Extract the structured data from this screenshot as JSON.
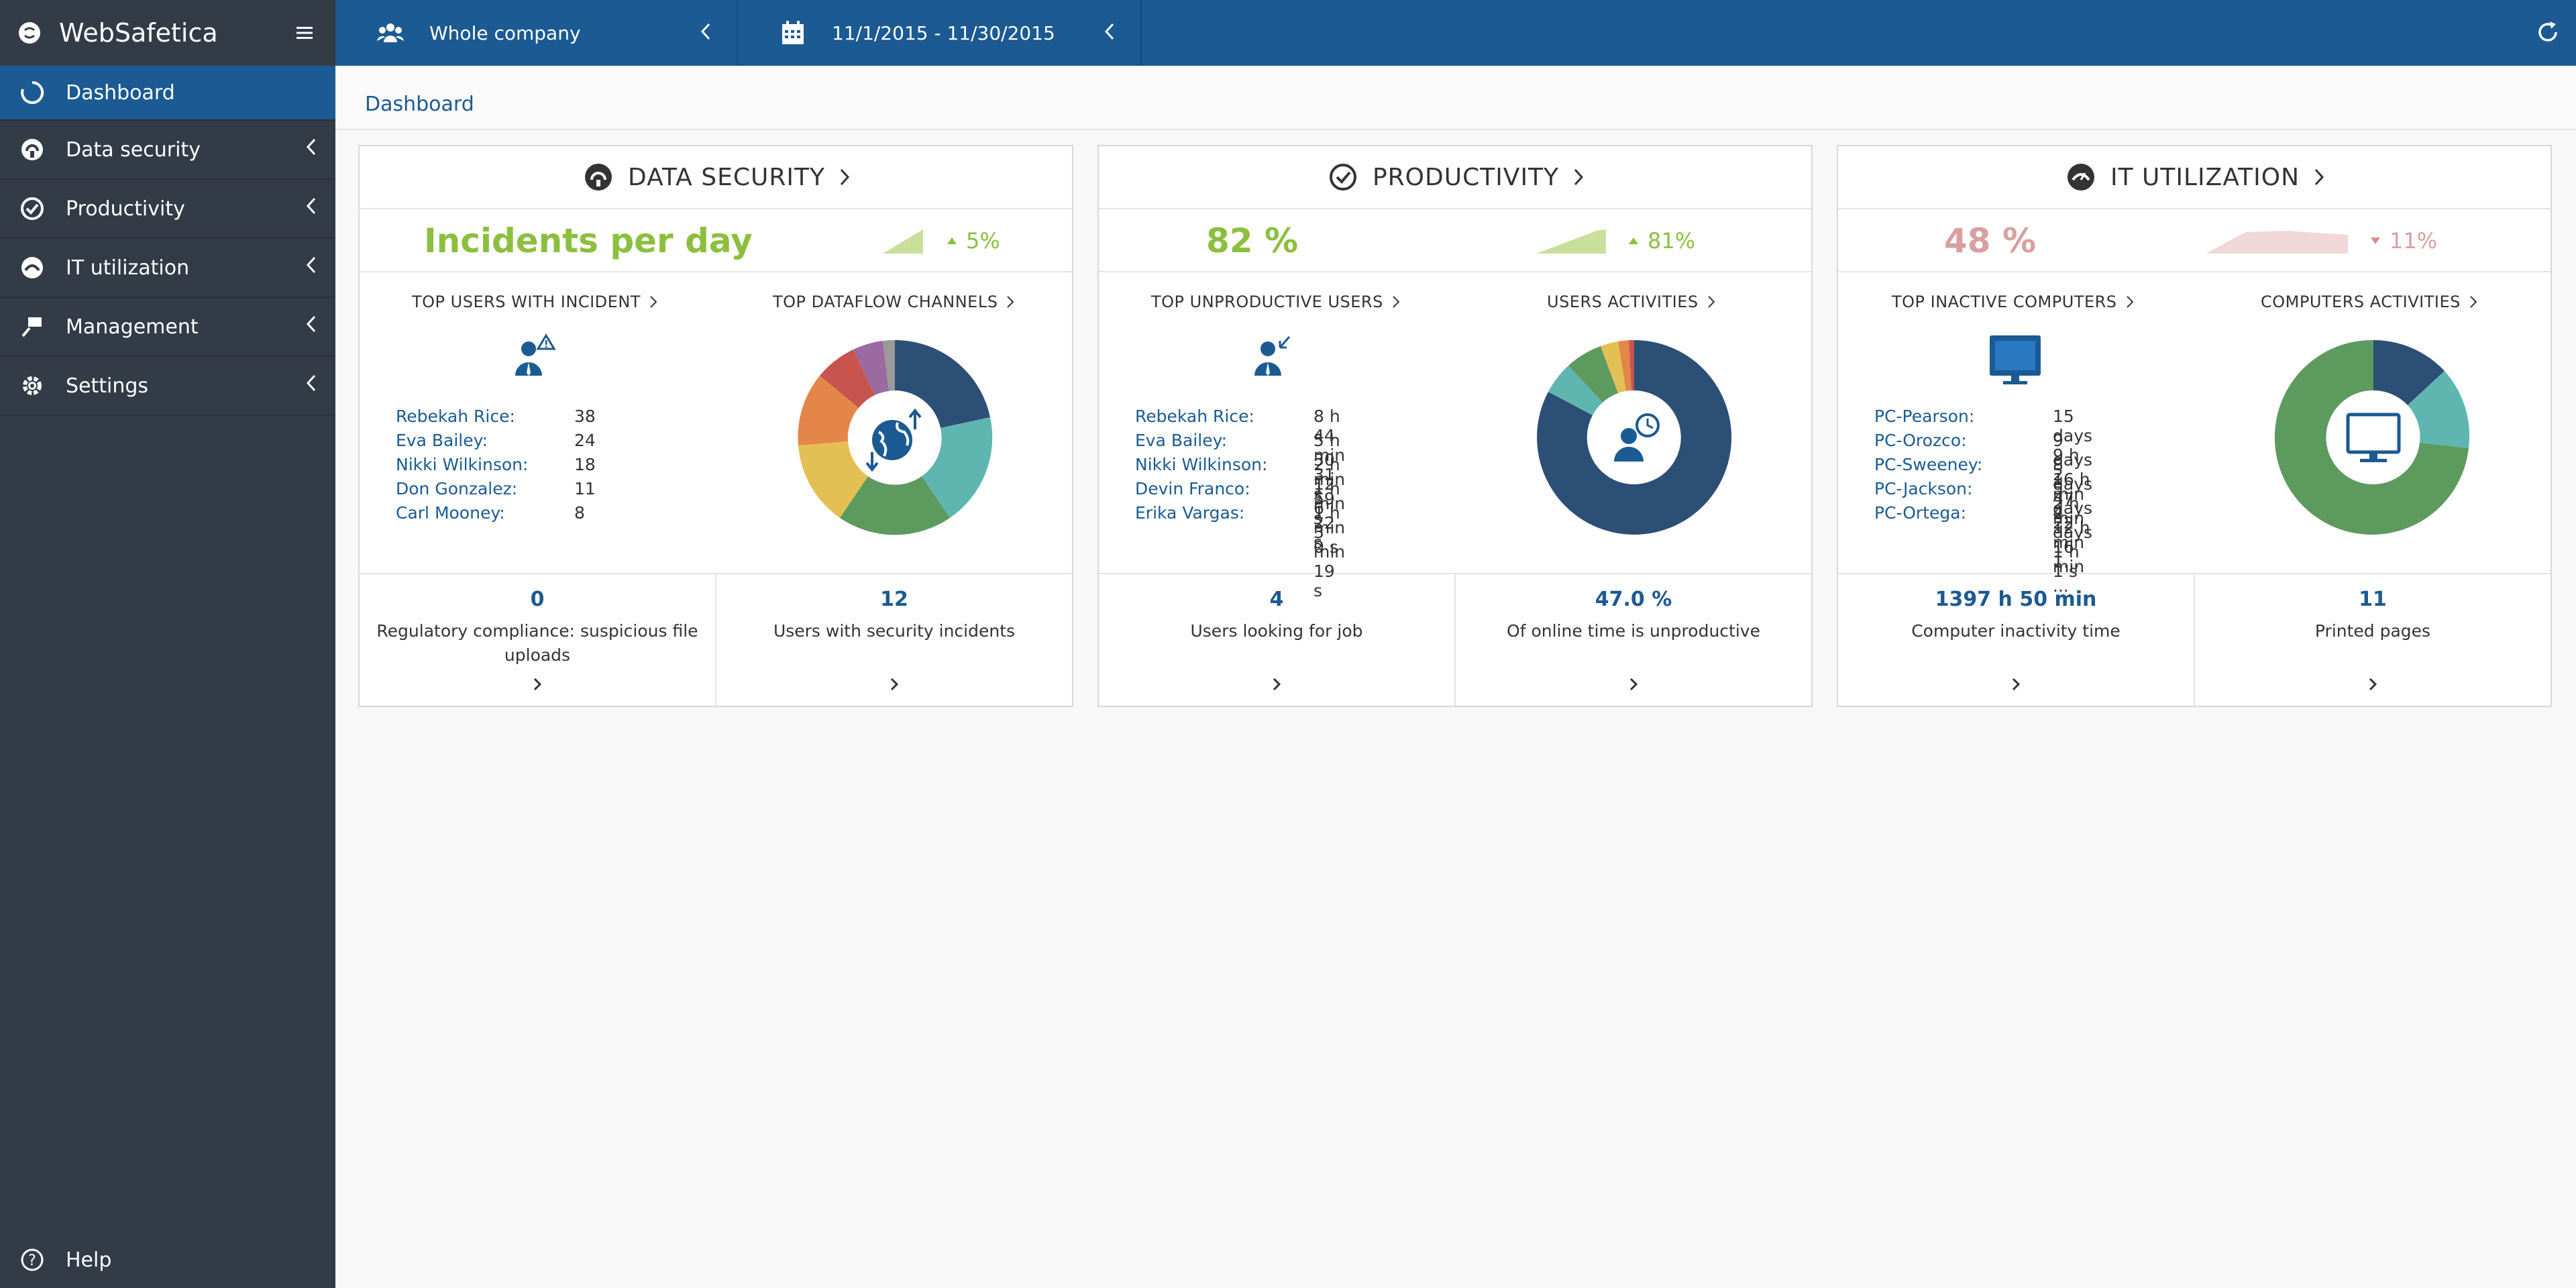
{
  "app": {
    "brand": "WebSafetica"
  },
  "sidebar": {
    "items": [
      {
        "label": "Dashboard",
        "icon": "dashboard-icon"
      },
      {
        "label": "Data security",
        "icon": "shield-icon"
      },
      {
        "label": "Productivity",
        "icon": "check-circle-icon"
      },
      {
        "label": "IT utilization",
        "icon": "gauge-icon"
      },
      {
        "label": "Management",
        "icon": "management-icon"
      },
      {
        "label": "Settings",
        "icon": "gear-icon"
      }
    ],
    "help": "Help"
  },
  "topbar": {
    "company": "Whole company",
    "date_range": "11/1/2015 - 11/30/2015"
  },
  "breadcrumb": "Dashboard",
  "colors": {
    "primary": "#1b5a93",
    "sidebar": "#333b47",
    "green": "#8cbf3f",
    "pink": "#d8a0a0"
  },
  "panels": {
    "security": {
      "title": "DATA SECURITY",
      "kpi": "Incidents per day",
      "delta": "5%",
      "left_title": "TOP USERS WITH INCIDENT",
      "right_title": "TOP DATAFLOW CHANNELS",
      "users": [
        {
          "name": "Rebekah Rice:",
          "value": "38"
        },
        {
          "name": "Eva Bailey:",
          "value": "24"
        },
        {
          "name": "Nikki Wilkinson:",
          "value": "18"
        },
        {
          "name": "Don Gonzalez:",
          "value": "11"
        },
        {
          "name": "Carl Mooney:",
          "value": "8"
        }
      ],
      "bottom": [
        {
          "num": "0",
          "desc": "Regulatory compliance: suspicious file uploads"
        },
        {
          "num": "12",
          "desc": "Users with security incidents"
        }
      ]
    },
    "productivity": {
      "title": "PRODUCTIVITY",
      "kpi": "82 %",
      "delta": "81%",
      "left_title": "TOP UNPRODUCTIVE USERS",
      "right_title": "USERS ACTIVITIES",
      "users": [
        {
          "name": "Rebekah Rice:",
          "value": "8 h 44 min 31 s"
        },
        {
          "name": "Eva Bailey:",
          "value": "5 h 30 min 59 s"
        },
        {
          "name": "Nikki Wilkinson:",
          "value": "2 h 12 min 22 s"
        },
        {
          "name": "Devin Franco:",
          "value": "1 h 6 min 0 s"
        },
        {
          "name": "Erika Vargas:",
          "value": "1 h 3 min 19 s"
        }
      ],
      "bottom": [
        {
          "num": "4",
          "desc": "Users looking for job"
        },
        {
          "num": "47.0 %",
          "desc": "Of online time is unproductive"
        }
      ]
    },
    "it": {
      "title": "IT UTILIZATION",
      "kpi": "48 %",
      "delta": "11%",
      "left_title": "TOP INACTIVE COMPUTERS",
      "right_title": "COMPUTERS ACTIVITIES",
      "users": [
        {
          "name": "PC-Pearson:",
          "value": "15 days 9 h 2 min 2..."
        },
        {
          "name": "PC-Orozco:",
          "value": "9 days 16 h 47 min ..."
        },
        {
          "name": "PC-Sweeney:",
          "value": "8 days 2 h 22 min 1..."
        },
        {
          "name": "PC-Jackson:",
          "value": "5 days 12 h 16 min ..."
        },
        {
          "name": "PC-Ortega:",
          "value": "4 days 1 h 1 s"
        }
      ],
      "bottom": [
        {
          "num": "1397 h 50 min",
          "desc": "Computer inactivity time"
        },
        {
          "num": "11",
          "desc": "Printed pages"
        }
      ]
    }
  }
}
